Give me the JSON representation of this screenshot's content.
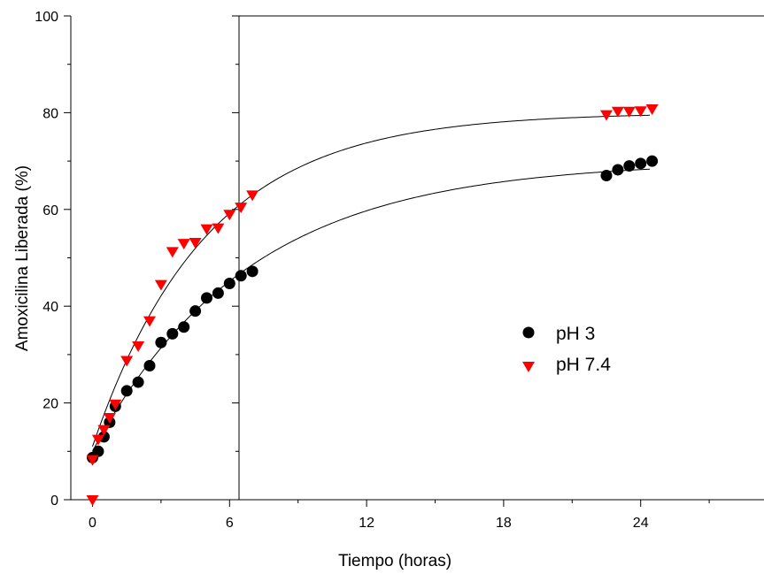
{
  "chart_data": {
    "type": "scatter",
    "title": "",
    "xlabel": "Tiempo (horas)",
    "ylabel": "Amoxicilina Liberada (%)",
    "xlim": [
      -1,
      30
    ],
    "ylim": [
      0,
      100
    ],
    "xticks": [
      0,
      6,
      12,
      18,
      24
    ],
    "yticks": [
      0,
      20,
      40,
      60,
      80,
      100
    ],
    "grid": false,
    "legend_position": "right-middle",
    "series": [
      {
        "name": "pH 3",
        "marker": "circle",
        "color": "#000000",
        "x": [
          0,
          0.25,
          0.5,
          0.75,
          1.0,
          1.5,
          2.0,
          2.5,
          3.0,
          3.5,
          4.0,
          4.5,
          5.0,
          5.5,
          6.0,
          6.5,
          7.0,
          22.5,
          23.0,
          23.5,
          24.0,
          24.5
        ],
        "y": [
          8.7,
          10.0,
          13.0,
          16.0,
          19.3,
          22.5,
          24.3,
          27.7,
          32.5,
          34.3,
          35.7,
          39.0,
          41.7,
          42.7,
          44.7,
          46.3,
          47.2,
          67.0,
          68.2,
          69.0,
          69.5,
          70.0
        ],
        "fit": {
          "equation": "y = a - b*exp(-k*x)",
          "a": 70.0,
          "b": 60.0,
          "k": 0.147
        }
      },
      {
        "name": "pH 7.4",
        "marker": "triangle-down",
        "color": "#ff0000",
        "x": [
          0,
          0,
          0.25,
          0.5,
          0.75,
          1.0,
          1.5,
          2.0,
          2.5,
          3.0,
          3.5,
          4.0,
          4.5,
          5.0,
          5.5,
          6.0,
          6.5,
          7.0,
          22.5,
          23.0,
          23.5,
          24.0,
          24.5
        ],
        "y": [
          0,
          8.3,
          12.5,
          14.5,
          17.0,
          19.8,
          28.8,
          31.8,
          37.0,
          44.5,
          51.3,
          53.0,
          53.2,
          56.0,
          56.2,
          59.0,
          60.5,
          63.0,
          79.6,
          80.3,
          80.3,
          80.4,
          80.8
        ],
        "fit": {
          "equation": "y = a - b*exp(-k*x)",
          "a": 80.0,
          "b": 69.0,
          "k": 0.2
        }
      }
    ]
  }
}
